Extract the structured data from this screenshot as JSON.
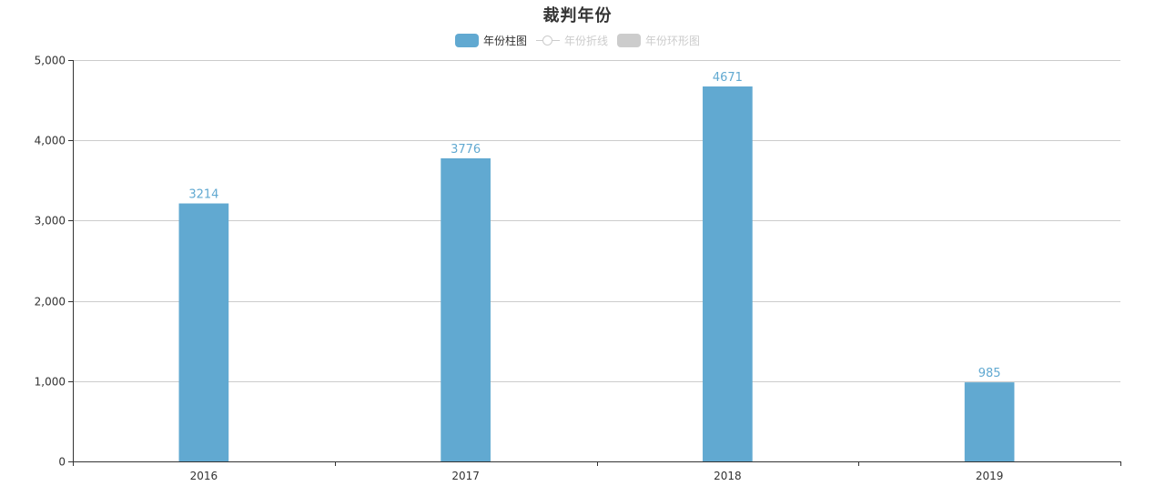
{
  "title": "裁判年份",
  "legend": [
    {
      "label": "年份柱图",
      "symbol": "rect",
      "active": true,
      "color": "#61a9d1",
      "text_color": "#333333"
    },
    {
      "label": "年份折线",
      "symbol": "line",
      "active": false,
      "color": "#cccccc",
      "text_color": "#cccccc"
    },
    {
      "label": "年份环形图",
      "symbol": "rect",
      "active": false,
      "color": "#cccccc",
      "text_color": "#cccccc"
    }
  ],
  "chart_data": {
    "type": "bar",
    "title": "裁判年份",
    "categories": [
      "2016",
      "2017",
      "2018",
      "2019"
    ],
    "series": [
      {
        "name": "年份柱图",
        "values": [
          3214,
          3776,
          4671,
          985
        ],
        "color": "#61a9d1"
      }
    ],
    "ylim": [
      0,
      5000
    ],
    "yticks": [
      0,
      1000,
      2000,
      3000,
      4000,
      5000
    ],
    "ytick_labels": [
      "0",
      "1,000",
      "2,000",
      "3,000",
      "4,000",
      "5,000"
    ],
    "grid": true,
    "legend_position": "top-center",
    "data_labels": true,
    "label_color": "#61a9d1"
  }
}
